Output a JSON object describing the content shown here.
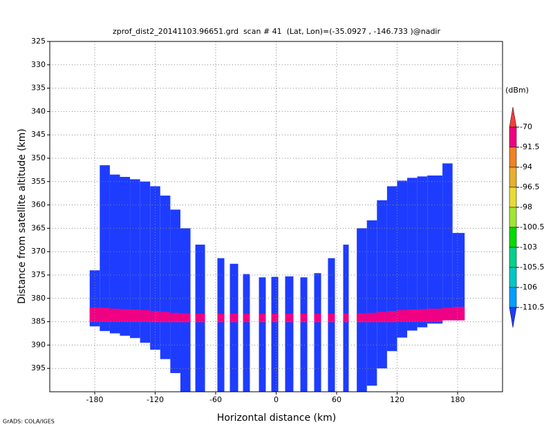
{
  "chart_data": {
    "type": "profile",
    "title": "zprof_dist2_20141103.96651.grd  scan # 41  (Lat, Lon)=(-35.0927 , -146.733 )@nadir",
    "x_label": "Horizontal distance (km)",
    "y_label": "Distance from satellite altitude (km)",
    "footer": "GrADS: COLA/IGES",
    "xlim": [
      -224.6,
      224.6
    ],
    "ylim": [
      400,
      325
    ],
    "xticks": [
      -180,
      -120,
      -60,
      0,
      60,
      120,
      180
    ],
    "yticks": [
      325,
      330,
      335,
      340,
      345,
      350,
      355,
      360,
      365,
      370,
      375,
      380,
      385,
      390,
      395
    ],
    "grid": true,
    "x_left": [
      -185,
      -175,
      -165,
      -155,
      -145,
      -135,
      -125,
      -115,
      -105,
      -95,
      -80.2,
      -58.3,
      -45.9,
      -32.9,
      -17.1,
      -4.8,
      8.9,
      24,
      37.7,
      51.4,
      66.5,
      80,
      90,
      100,
      110,
      120,
      130,
      140,
      150,
      165,
      175
    ],
    "x_right": [
      -175,
      -165,
      -155,
      -145,
      -135,
      -125,
      -115,
      -105,
      -95,
      -85,
      -70.6,
      -51.4,
      -37.7,
      -26.1,
      -10.3,
      2.1,
      17.1,
      30.9,
      44.6,
      58.3,
      72,
      90,
      100,
      110,
      120,
      130,
      140,
      150,
      165,
      175,
      187
    ],
    "echo": {
      "color": "#1e3cff",
      "top": [
        374,
        351.5,
        353.5,
        354,
        354.5,
        355,
        356,
        358,
        361,
        365,
        368.5,
        371.4,
        372.6,
        374.8,
        375.5,
        375.4,
        375.3,
        375.5,
        374.6,
        371.4,
        368.5,
        365,
        363.3,
        359,
        356,
        354.8,
        354.2,
        353.9,
        353.7,
        351.1,
        366
      ],
      "bottom": [
        386,
        387,
        387.5,
        388,
        388.5,
        389.5,
        391,
        393,
        396,
        400,
        400,
        400,
        400,
        400,
        400,
        400,
        400,
        400,
        400,
        400,
        400,
        400,
        398.7,
        395,
        391.3,
        388.4,
        386.9,
        386.2,
        385.4,
        384.7,
        384.7
      ]
    },
    "layer": {
      "color": "#f00082",
      "top": [
        382,
        382,
        382.2,
        382.3,
        382.4,
        382.5,
        382.7,
        382.9,
        383.1,
        383.2,
        383.3,
        383.3,
        383.3,
        383.3,
        383.3,
        383.3,
        383.3,
        383.3,
        383.3,
        383.3,
        383.3,
        383.2,
        383.1,
        382.9,
        382.7,
        382.5,
        382.4,
        382.3,
        382.2,
        382,
        381.8
      ],
      "bottom": [
        385,
        385,
        385,
        385,
        385,
        385,
        385.1,
        385.1,
        385.1,
        385.1,
        385.1,
        385.1,
        385.1,
        385.1,
        385.1,
        385.1,
        385.1,
        385.1,
        385.1,
        385.1,
        385.1,
        385.1,
        385.1,
        385.1,
        385.1,
        385,
        385,
        385,
        385,
        384.7,
        384.7
      ]
    },
    "colorbar": {
      "label": "(dBm)",
      "levels": [
        -70,
        -91.5,
        -94,
        -96.5,
        -98,
        -100.5,
        -103,
        -105.5,
        -106,
        -110.5
      ],
      "colors": [
        "#fa3c3c",
        "#f00082",
        "#f08228",
        "#e6af2d",
        "#e6dc32",
        "#a0e632",
        "#00dc00",
        "#00d28c",
        "#00c8c8",
        "#00a0ff",
        "#1e3cff"
      ]
    }
  }
}
